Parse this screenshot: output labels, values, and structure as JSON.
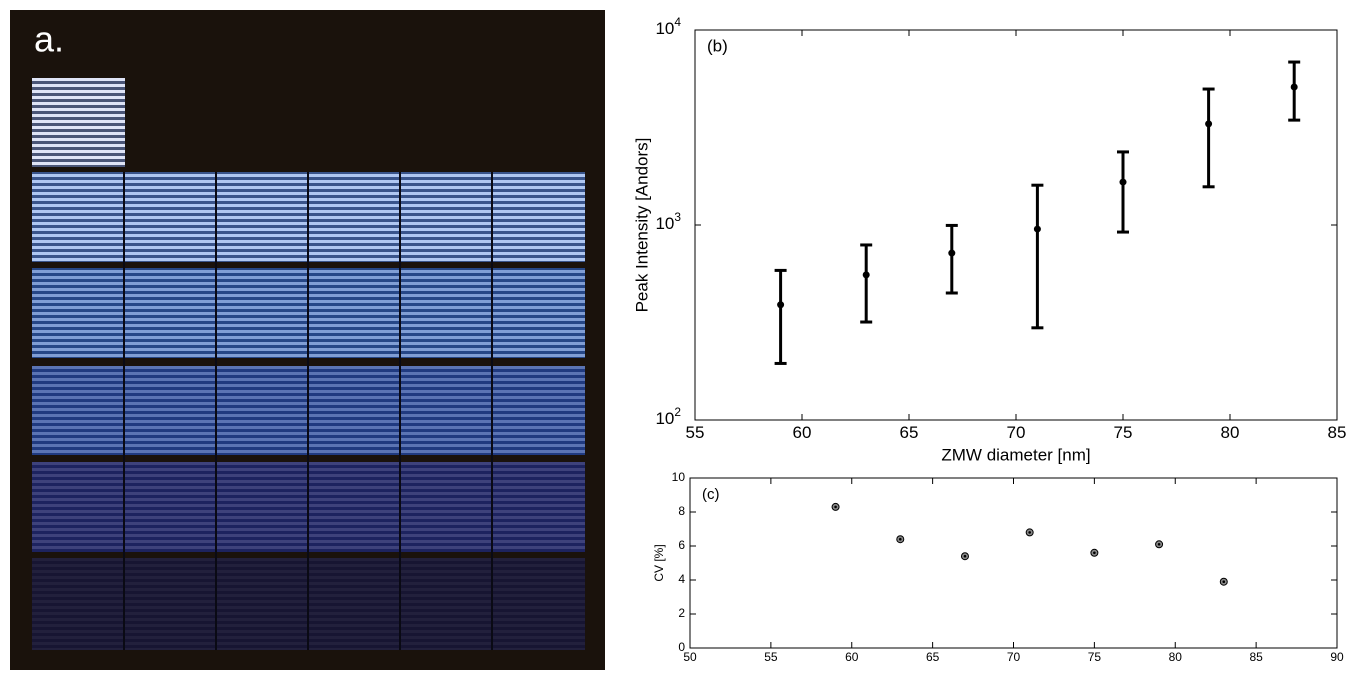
{
  "photo_label": "a.",
  "chart_data": [
    {
      "type": "errorbar",
      "annotation": "(b)",
      "xlabel": "ZMW diameter [nm]",
      "ylabel": "Peak Intensity [Andors]",
      "x": [
        59,
        63,
        67,
        71,
        75,
        79,
        83
      ],
      "values": [
        390,
        555,
        718,
        953,
        1660,
        3300,
        5100
      ],
      "lower": [
        195,
        318,
        448,
        297,
        920,
        1570,
        3450
      ],
      "upper": [
        585,
        790,
        995,
        1600,
        2370,
        4980,
        6850
      ],
      "color": "#000000",
      "log_y": true,
      "xlim": [
        55,
        85
      ],
      "xticks": [
        55,
        60,
        65,
        70,
        75,
        80,
        85
      ],
      "ylim": [
        100,
        10000
      ],
      "yticks": [
        {
          "value": 100,
          "label": "10",
          "exponent": "2"
        },
        {
          "value": 1000,
          "label": "10",
          "exponent": "3"
        },
        {
          "value": 10000,
          "label": "10",
          "exponent": "4"
        }
      ]
    },
    {
      "type": "scatter",
      "annotation": "(c)",
      "ylabel": "CV [%]",
      "x": [
        59,
        63,
        67,
        71,
        75,
        79,
        83
      ],
      "values": [
        8.3,
        6.4,
        5.4,
        6.8,
        5.6,
        6.1,
        3.9
      ],
      "color": "#888888",
      "log_y": false,
      "xlim": [
        50,
        90
      ],
      "xticks": [
        50,
        55,
        60,
        65,
        70,
        75,
        80,
        85,
        90
      ],
      "ylim": [
        0,
        10
      ],
      "yticks": [
        0,
        2,
        4,
        6,
        8,
        10
      ]
    }
  ]
}
